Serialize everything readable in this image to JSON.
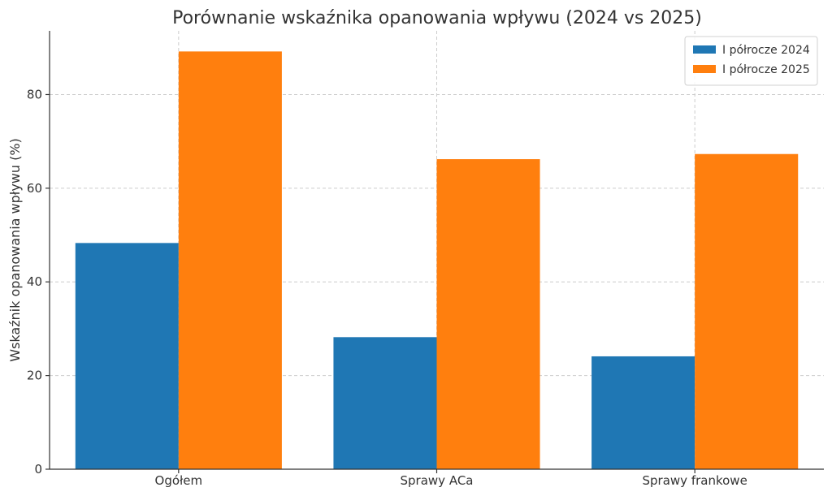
{
  "chart_data": {
    "type": "bar",
    "title": "Porównanie wskaźnika opanowania wpływu (2024 vs 2025)",
    "xlabel": "",
    "ylabel": "Wskaźnik opanowania wpływu (%)",
    "categories": [
      "Ogółem",
      "Sprawy ACa",
      "Sprawy frankowe"
    ],
    "series": [
      {
        "name": "I półrocze 2024",
        "color": "#1f77b4",
        "values": [
          48.3,
          28.2,
          24.1
        ]
      },
      {
        "name": "I półrocze 2025",
        "color": "#ff7f0e",
        "values": [
          89.2,
          66.2,
          67.3
        ]
      }
    ],
    "ylim": [
      0,
      93.6
    ],
    "yticks": [
      0,
      20,
      40,
      60,
      80
    ],
    "grid": true,
    "legend_position": "top-right"
  }
}
